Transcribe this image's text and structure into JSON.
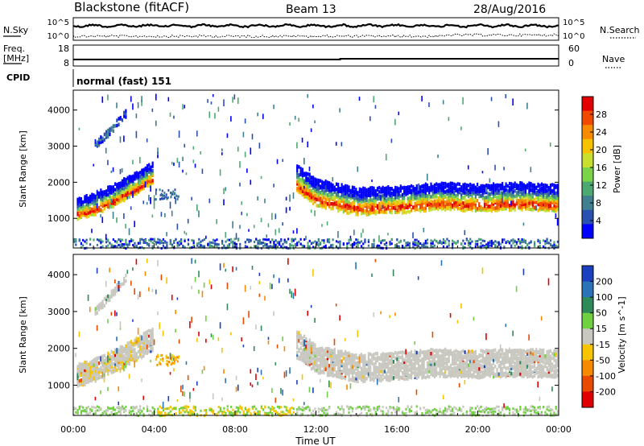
{
  "header": {
    "title": "Blackstone (fitACF)",
    "beam": "Beam 13",
    "date": "28/Aug/2016"
  },
  "status_panel": {
    "left_labels": [
      "N.Sky"
    ],
    "right_labels": [
      "N.Search"
    ],
    "left_ticks": [
      "10^5",
      "10^0"
    ],
    "right_ticks": [
      "10^5",
      "10^0"
    ]
  },
  "freq_panel": {
    "left_label_lines": [
      "Freq.",
      "[MHz]"
    ],
    "left_ticks": [
      "18",
      "8"
    ],
    "right_ticks": [
      "60",
      "0"
    ],
    "right_label": "Nave"
  },
  "cpid": {
    "label": "CPID",
    "value": "normal (fast) 151"
  },
  "colors": {
    "power_scale": [
      "#0000ff",
      "#2a50b0",
      "#3f7f8f",
      "#4ea872",
      "#7bd34a",
      "#c8df30",
      "#f6c200",
      "#f88a00",
      "#f04a00",
      "#e30000"
    ],
    "velocity_scale": [
      "#1a3fbf",
      "#2b72b8",
      "#2f8a5a",
      "#6fd040",
      "#c8c8c0",
      "#f6c400",
      "#f68a00",
      "#e84a00",
      "#e00000"
    ]
  },
  "chart_data": [
    {
      "type": "line",
      "title": "",
      "series": [
        {
          "name": "N.Sky",
          "level": "high, near 10^5"
        },
        {
          "name": "N.Search",
          "level": "low, near 10^0"
        }
      ],
      "yticks": [
        "10^0",
        "10^5"
      ],
      "xlim": [
        0,
        24
      ]
    },
    {
      "type": "line",
      "series": [
        {
          "name": "Freq.",
          "x": [
            0,
            13.2,
            13.2,
            24
          ],
          "values": [
            10.3,
            10.3,
            10.8,
            10.8
          ]
        }
      ],
      "yticks": [
        "8",
        "18"
      ],
      "y2ticks": [
        "0",
        "60"
      ],
      "xlim": [
        0,
        24
      ]
    },
    {
      "type": "heatmap",
      "ylabel": "Slant Range [km]",
      "yticks": [
        1000,
        2000,
        3000,
        4000
      ],
      "ylim": [
        180,
        4550
      ],
      "xlim": [
        0,
        24
      ],
      "colorbar": {
        "label": "Power [dB]",
        "ticks": [
          4,
          8,
          12,
          16,
          20,
          24,
          28
        ]
      },
      "echo_bands": [
        {
          "x": [
            0.1,
            1.0,
            2.0,
            3.0,
            3.9
          ],
          "center": [
            1150,
            1300,
            1550,
            1850,
            2150
          ]
        },
        {
          "x": [
            11.0,
            12.0,
            14.0,
            16.0,
            18.0,
            20.0,
            22.0,
            24.0
          ],
          "center": [
            2000,
            1600,
            1350,
            1400,
            1500,
            1450,
            1500,
            1450
          ]
        },
        {
          "x": [
            1.0,
            1.8,
            2.6
          ],
          "center": [
            2950,
            3400,
            3900
          ]
        }
      ]
    },
    {
      "type": "heatmap",
      "ylabel": "Slant Range [km]",
      "yticks": [
        1000,
        2000,
        3000,
        4000
      ],
      "ylim": [
        180,
        4550
      ],
      "xlim": [
        0,
        24
      ],
      "xlabel": "Time UT",
      "xtick_labels": [
        "00:00",
        "04:00",
        "08:00",
        "12:00",
        "16:00",
        "20:00",
        "00:00"
      ],
      "colorbar": {
        "label": "Velocity [m s^-1]",
        "ticks": [
          200,
          100,
          50,
          15,
          -15,
          -50,
          -100,
          -200
        ]
      }
    }
  ]
}
